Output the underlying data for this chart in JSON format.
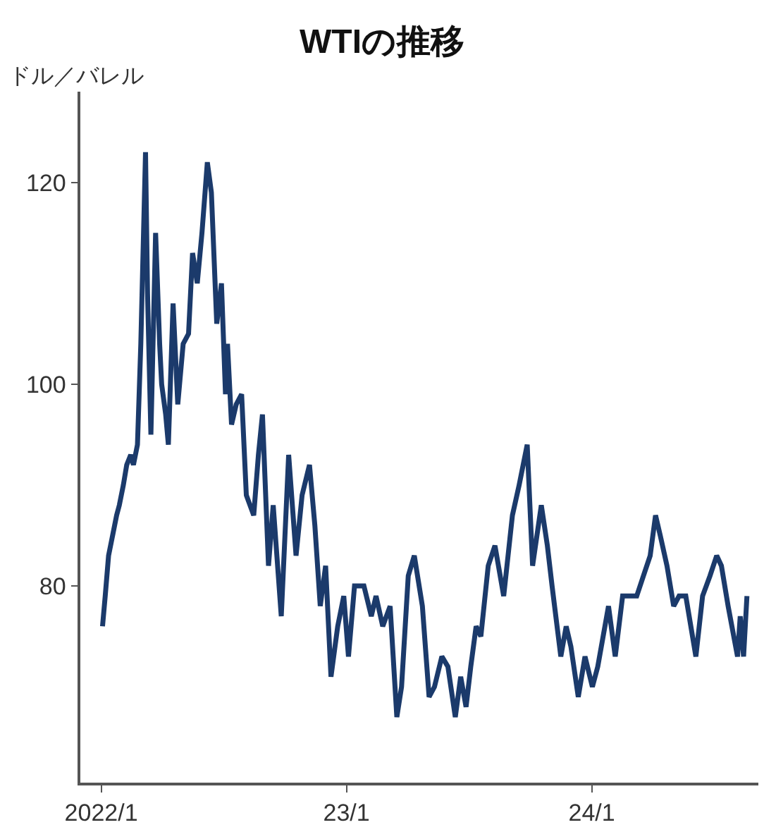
{
  "chart_data": {
    "type": "line",
    "title": "WTIの推移",
    "ylabel": "ドル／バレル",
    "x": [
      "2022-01-03",
      "2022-01-07",
      "2022-01-12",
      "2022-01-18",
      "2022-01-24",
      "2022-01-28",
      "2022-02-03",
      "2022-02-08",
      "2022-02-14",
      "2022-02-18",
      "2022-02-24",
      "2022-03-01",
      "2022-03-08",
      "2022-03-11",
      "2022-03-16",
      "2022-03-23",
      "2022-03-29",
      "2022-04-01",
      "2022-04-07",
      "2022-04-11",
      "2022-04-18",
      "2022-04-25",
      "2022-05-03",
      "2022-05-11",
      "2022-05-17",
      "2022-05-24",
      "2022-05-31",
      "2022-06-08",
      "2022-06-14",
      "2022-06-22",
      "2022-06-29",
      "2022-07-05",
      "2022-07-08",
      "2022-07-14",
      "2022-07-21",
      "2022-07-29",
      "2022-08-05",
      "2022-08-16",
      "2022-08-23",
      "2022-08-29",
      "2022-09-07",
      "2022-09-14",
      "2022-09-26",
      "2022-10-07",
      "2022-10-18",
      "2022-10-27",
      "2022-11-07",
      "2022-11-15",
      "2022-11-23",
      "2022-12-01",
      "2022-12-09",
      "2022-12-19",
      "2022-12-28",
      "2023-01-04",
      "2023-01-13",
      "2023-01-27",
      "2023-02-07",
      "2023-02-14",
      "2023-02-24",
      "2023-03-07",
      "2023-03-17",
      "2023-03-24",
      "2023-04-03",
      "2023-04-12",
      "2023-04-24",
      "2023-05-04",
      "2023-05-12",
      "2023-05-23",
      "2023-06-01",
      "2023-06-12",
      "2023-06-20",
      "2023-06-28",
      "2023-07-05",
      "2023-07-13",
      "2023-07-20",
      "2023-07-31",
      "2023-08-10",
      "2023-08-23",
      "2023-09-05",
      "2023-09-15",
      "2023-09-27",
      "2023-10-05",
      "2023-10-18",
      "2023-10-27",
      "2023-11-03",
      "2023-11-16",
      "2023-11-24",
      "2023-12-01",
      "2023-12-12",
      "2023-12-22",
      "2024-01-02",
      "2024-01-10",
      "2024-01-26",
      "2024-02-05",
      "2024-02-16",
      "2024-02-27",
      "2024-03-08",
      "2024-03-18",
      "2024-03-28",
      "2024-04-05",
      "2024-04-12",
      "2024-04-22",
      "2024-05-02",
      "2024-05-10",
      "2024-05-20",
      "2024-06-04",
      "2024-06-14",
      "2024-06-25",
      "2024-07-05",
      "2024-07-12",
      "2024-07-22",
      "2024-08-05",
      "2024-08-09",
      "2024-08-14",
      "2024-08-19"
    ],
    "series": [
      {
        "color": "#1b3a6b",
        "values": [
          76,
          79,
          83,
          85,
          87,
          88,
          90,
          92,
          93,
          92,
          94,
          104,
          123,
          109,
          95,
          115,
          104,
          100,
          97,
          94,
          108,
          98,
          104,
          105,
          113,
          110,
          115,
          122,
          119,
          106,
          110,
          99,
          104,
          96,
          98,
          99,
          89,
          87,
          93,
          97,
          82,
          88,
          77,
          93,
          83,
          89,
          92,
          86,
          78,
          82,
          71,
          76,
          79,
          73,
          80,
          80,
          77,
          79,
          76,
          78,
          67,
          70,
          81,
          83,
          78,
          69,
          70,
          73,
          72,
          67,
          71,
          68,
          72,
          76,
          75,
          82,
          84,
          79,
          87,
          90,
          94,
          82,
          88,
          84,
          80,
          73,
          76,
          74,
          69,
          73,
          70,
          72,
          78,
          73,
          79,
          79,
          79,
          81,
          83,
          87,
          85,
          82,
          78,
          79,
          79,
          73,
          79,
          81,
          83,
          82,
          78,
          73,
          77,
          73,
          79
        ]
      }
    ],
    "xlim": [
      "2021-12-01",
      "2024-09-05"
    ],
    "ylim": [
      60.5,
      129
    ],
    "xticks": [
      {
        "value": "2022-01-01",
        "label": "2022/1"
      },
      {
        "value": "2023-01-01",
        "label": "23/1"
      },
      {
        "value": "2024-01-01",
        "label": "24/1"
      }
    ],
    "yticks": [
      80,
      100,
      120
    ],
    "marker": "none",
    "line_style": "solid"
  }
}
